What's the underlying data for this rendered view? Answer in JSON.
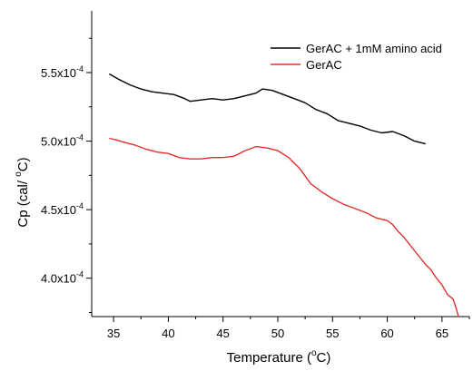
{
  "chart_data": {
    "type": "line",
    "xlabel": {
      "base": "Temperature (",
      "sup": "o",
      "tail": "C)"
    },
    "ylabel": {
      "base": "Cp (cal/ ",
      "sup": "o",
      "tail": "C)"
    },
    "xlim": [
      33,
      67.5
    ],
    "ylim": [
      0.000372,
      0.000595
    ],
    "x_ticks": [
      35,
      40,
      45,
      50,
      55,
      60,
      65
    ],
    "x_tick_labels": [
      "35",
      "40",
      "45",
      "50",
      "55",
      "60",
      "65"
    ],
    "y_ticks": [
      0.0004,
      0.00045,
      0.0005,
      0.00055
    ],
    "y_tick_labels": [
      {
        "mant": "4.0x10",
        "exp": "-4"
      },
      {
        "mant": "4.5x10",
        "exp": "-4"
      },
      {
        "mant": "5.0x10",
        "exp": "-4"
      },
      {
        "mant": "5.5x10",
        "exp": "-4"
      }
    ],
    "legend_position": "top-right",
    "grid": false,
    "series": [
      {
        "name": "GerAC + 1mM amino acid",
        "color": "#000000",
        "x": [
          34.6,
          35.5,
          36.5,
          37.5,
          38.5,
          39.5,
          40.5,
          41.5,
          42.0,
          43.0,
          44.0,
          45.0,
          46.0,
          47.0,
          48.0,
          48.6,
          49.5,
          50.5,
          51.5,
          52.5,
          53.5,
          54.5,
          55.5,
          56.5,
          57.5,
          58.5,
          59.5,
          60.5,
          61.5,
          62.5,
          63.5
        ],
        "y": [
          0.000549,
          0.000545,
          0.000541,
          0.000538,
          0.000536,
          0.000535,
          0.000534,
          0.000531,
          0.000529,
          0.00053,
          0.000531,
          0.00053,
          0.000531,
          0.000533,
          0.000535,
          0.000538,
          0.000537,
          0.000534,
          0.000531,
          0.000528,
          0.000523,
          0.00052,
          0.000515,
          0.000513,
          0.000511,
          0.000508,
          0.000506,
          0.000507,
          0.000504,
          0.0005,
          0.000498
        ]
      },
      {
        "name": "GerAC",
        "color": "#e03030",
        "x": [
          34.6,
          35.2,
          36.0,
          37.0,
          38.0,
          39.0,
          40.0,
          41.0,
          42.0,
          43.0,
          44.0,
          45.0,
          46.0,
          47.0,
          48.0,
          49.0,
          50.0,
          51.0,
          52.0,
          53.0,
          54.0,
          55.0,
          56.0,
          57.0,
          58.0,
          59.0,
          60.0,
          60.5,
          61.0,
          61.5,
          62.0,
          62.5,
          63.0,
          63.5,
          64.0,
          64.5,
          65.0,
          65.5,
          66.0,
          66.3,
          66.5
        ],
        "y": [
          0.000502,
          0.000501,
          0.000499,
          0.000497,
          0.000494,
          0.000492,
          0.000491,
          0.000488,
          0.000487,
          0.000487,
          0.000488,
          0.000488,
          0.000489,
          0.000493,
          0.000496,
          0.000495,
          0.000493,
          0.000488,
          0.00048,
          0.000469,
          0.000463,
          0.000458,
          0.000454,
          0.000451,
          0.000448,
          0.000444,
          0.000442,
          0.000439,
          0.000434,
          0.00043,
          0.000425,
          0.00042,
          0.000415,
          0.00041,
          0.000406,
          0.0004,
          0.000395,
          0.000388,
          0.000385,
          0.000378,
          0.000372
        ]
      }
    ]
  }
}
